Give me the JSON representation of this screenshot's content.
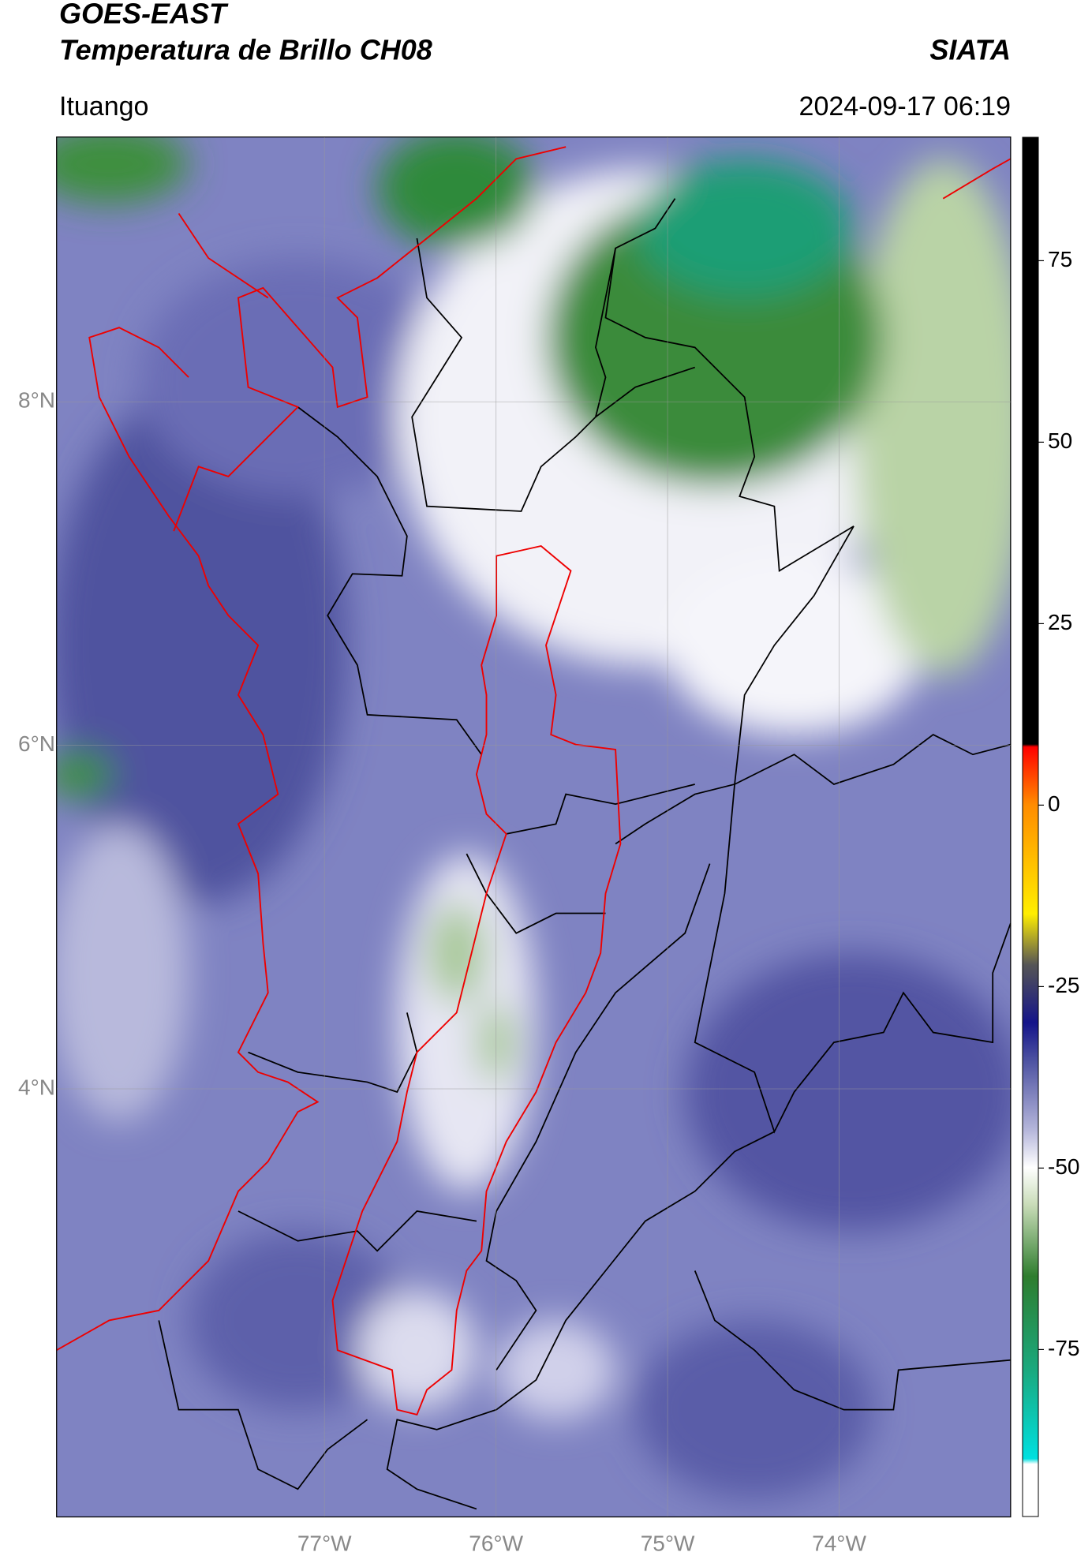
{
  "header": {
    "title": "GOES-EAST",
    "subtitle": "Temperatura de Brillo CH08",
    "brand": "SIATA",
    "location": "Ituango",
    "datetime": "2024-09-17 06:19"
  },
  "map": {
    "xlim": [
      -78.56,
      -73.0
    ],
    "ylim": [
      1.51,
      9.54
    ],
    "xticks": [
      {
        "value": -77,
        "label": "77°W"
      },
      {
        "value": -76,
        "label": "76°W"
      },
      {
        "value": -75,
        "label": "75°W"
      },
      {
        "value": -74,
        "label": "74°W"
      }
    ],
    "yticks": [
      {
        "value": 4,
        "label": "4°N"
      },
      {
        "value": 6,
        "label": "6°N"
      },
      {
        "value": 8,
        "label": "8°N"
      }
    ],
    "grid": true
  },
  "colorbar": {
    "lim": [
      -98,
      92
    ],
    "ticks": [
      -75,
      -50,
      -25,
      0,
      25,
      50,
      75
    ]
  }
}
